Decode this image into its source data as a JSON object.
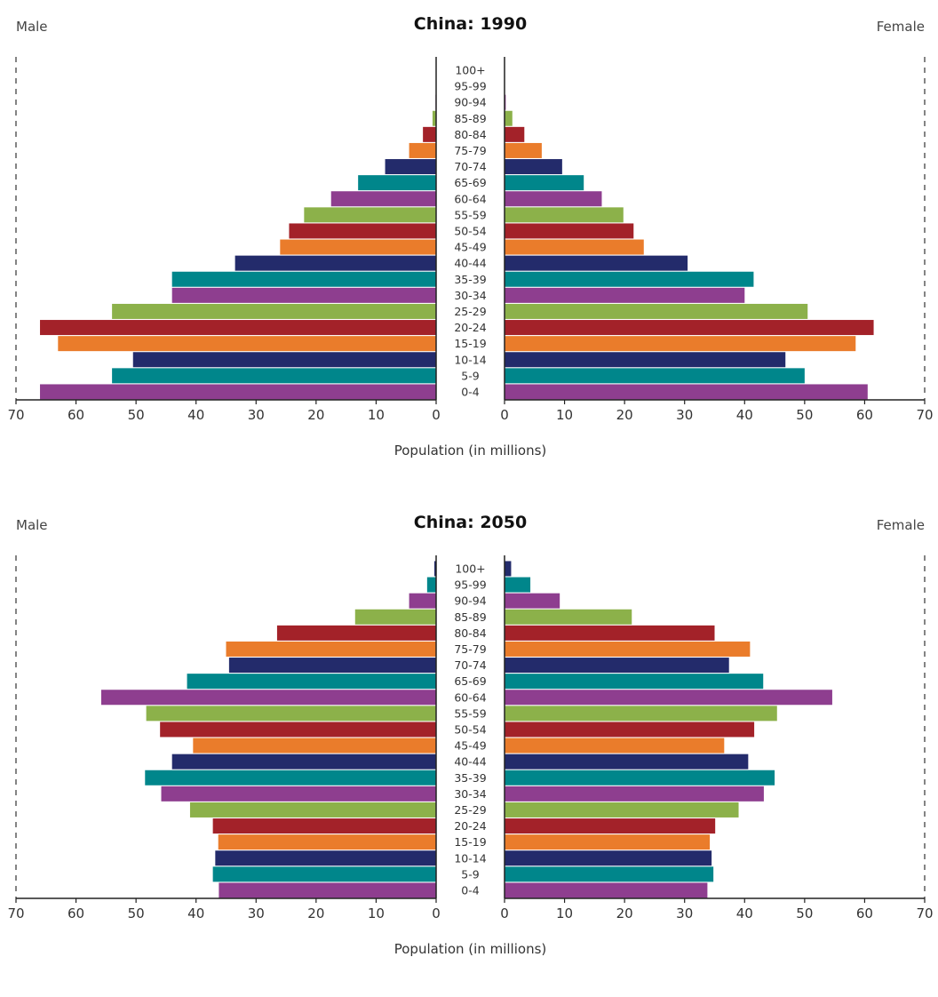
{
  "colors": {
    "purple": "#8e3e8f",
    "teal": "#00868b",
    "navy": "#232b6b",
    "orange": "#ea7c2b",
    "red": "#a32229",
    "green": "#8cb14a"
  },
  "chart_data": [
    {
      "type": "bar",
      "title": "China: 1990",
      "left_label": "Male",
      "right_label": "Female",
      "xlabel": "Population (in millions)",
      "xlim": [
        0,
        70
      ],
      "xticks": [
        "70",
        "60",
        "50",
        "40",
        "30",
        "20",
        "10",
        "0",
        "0",
        "10",
        "20",
        "30",
        "40",
        "50",
        "60",
        "70"
      ],
      "categories": [
        "0-4",
        "5-9",
        "10-14",
        "15-19",
        "20-24",
        "25-29",
        "30-34",
        "35-39",
        "40-44",
        "45-49",
        "50-54",
        "55-59",
        "60-64",
        "65-69",
        "70-74",
        "75-79",
        "80-84",
        "85-89",
        "90-94",
        "95-99",
        "100+"
      ],
      "series": [
        {
          "name": "Male",
          "values": [
            66,
            54,
            50.5,
            63,
            66,
            54,
            44,
            44,
            33.5,
            26,
            24.5,
            22,
            17.5,
            13,
            8.5,
            4.5,
            2.2,
            0.6,
            0.1,
            0,
            0
          ]
        },
        {
          "name": "Female",
          "values": [
            60.5,
            50,
            46.8,
            58.5,
            61.5,
            50.5,
            40,
            41.5,
            30.5,
            23.2,
            21.5,
            19.8,
            16.2,
            13.2,
            9.6,
            6.2,
            3.3,
            1.3,
            0.2,
            0,
            0
          ]
        }
      ]
    },
    {
      "type": "bar",
      "title": "China: 2050",
      "left_label": "Male",
      "right_label": "Female",
      "xlabel": "Population (in millions)",
      "xlim": [
        0,
        70
      ],
      "xticks": [
        "70",
        "60",
        "50",
        "40",
        "30",
        "20",
        "10",
        "0",
        "0",
        "10",
        "20",
        "30",
        "40",
        "50",
        "60",
        "70"
      ],
      "categories": [
        "0-4",
        "5-9",
        "10-14",
        "15-19",
        "20-24",
        "25-29",
        "30-34",
        "35-39",
        "40-44",
        "45-49",
        "50-54",
        "55-59",
        "60-64",
        "65-69",
        "70-74",
        "75-79",
        "80-84",
        "85-89",
        "90-94",
        "95-99",
        "100+"
      ],
      "series": [
        {
          "name": "Male",
          "values": [
            36.2,
            37.2,
            36.8,
            36.3,
            37.2,
            41,
            45.8,
            48.5,
            44,
            40.5,
            46,
            48.3,
            55.8,
            41.5,
            34.5,
            35,
            26.5,
            13.5,
            4.5,
            1.5,
            0.3
          ]
        },
        {
          "name": "Female",
          "values": [
            33.8,
            34.8,
            34.5,
            34.2,
            35.1,
            39,
            43.2,
            45,
            40.6,
            36.6,
            41.6,
            45.4,
            54.6,
            43.1,
            37.4,
            40.9,
            35,
            21.2,
            9.2,
            4.3,
            1.1
          ]
        }
      ]
    }
  ]
}
